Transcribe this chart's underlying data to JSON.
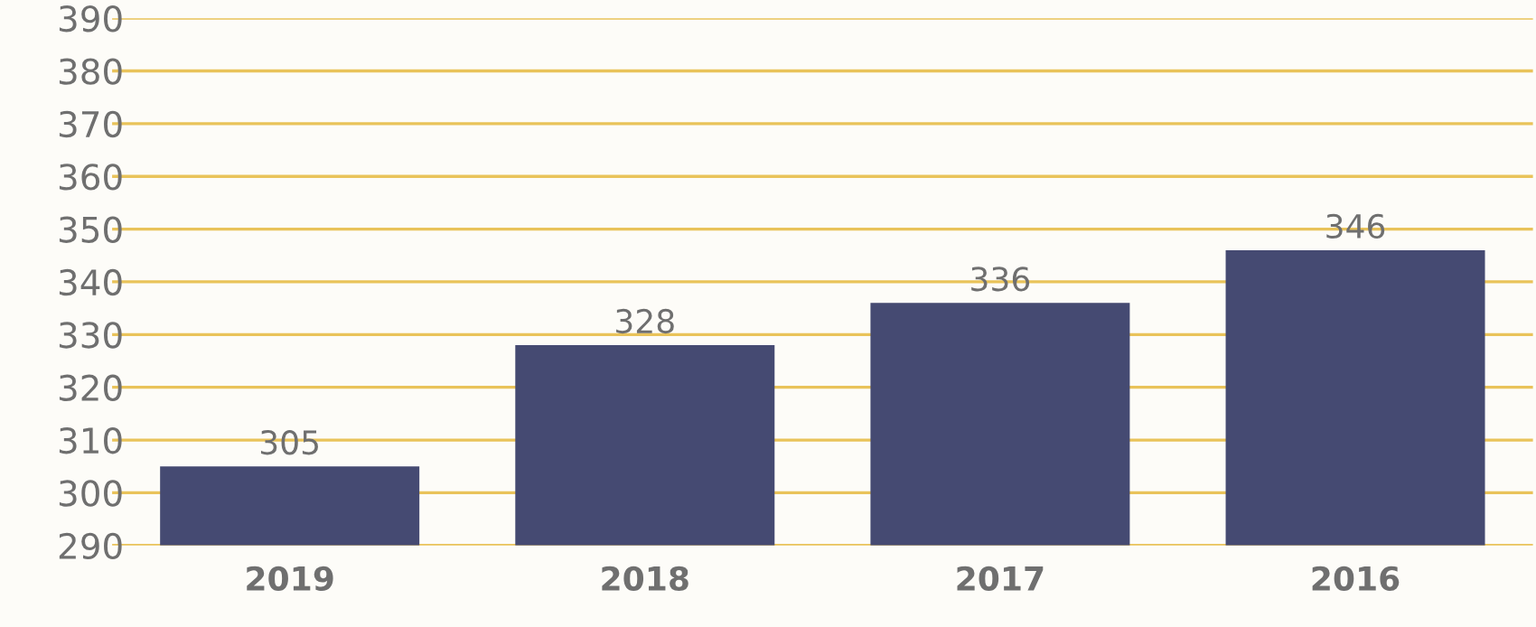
{
  "chart_data": {
    "type": "bar",
    "categories": [
      "2019",
      "2018",
      "2017",
      "2016"
    ],
    "values": [
      305,
      328,
      336,
      346
    ],
    "color": "#454a72",
    "ylim": [
      290,
      390
    ],
    "yticks": [
      290,
      300,
      310,
      320,
      330,
      340,
      350,
      360,
      370,
      380,
      390
    ],
    "grid": "y",
    "data_labels": true
  }
}
